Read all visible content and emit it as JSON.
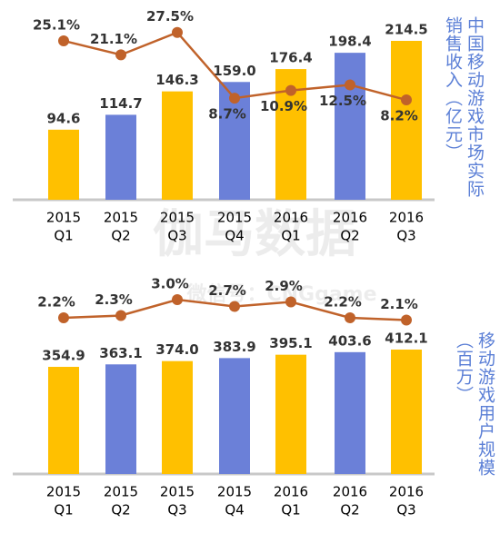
{
  "chart_data": [
    {
      "type": "combo",
      "y_label": "中国移动游戏市场实际销售收入（亿元）",
      "categories": [
        [
          "2015",
          "Q1"
        ],
        [
          "2015",
          "Q2"
        ],
        [
          "2015",
          "Q3"
        ],
        [
          "2015",
          "Q4"
        ],
        [
          "2016",
          "Q1"
        ],
        [
          "2016",
          "Q2"
        ],
        [
          "2016",
          "Q3"
        ]
      ],
      "series": [
        {
          "type": "bar",
          "colors": [
            "#FFC000",
            "#6B80D8",
            "#FFC000",
            "#6B80D8",
            "#FFC000",
            "#6B80D8",
            "#FFC000"
          ],
          "values": [
            94.6,
            114.7,
            146.3,
            159,
            176.4,
            198.4,
            214.5
          ],
          "value_labels": [
            "94.6",
            "114.7",
            "146.3",
            "159.0",
            "176.4",
            "198.4",
            "214.5"
          ]
        },
        {
          "type": "line",
          "color": "#C0622A",
          "values": [
            25.1,
            21.1,
            27.5,
            8.7,
            10.9,
            12.5,
            8.2
          ],
          "value_labels": [
            "25.1%",
            "21.1%",
            "27.5%",
            "8.7%",
            "10.9%",
            "12.5%",
            "8.2%"
          ]
        }
      ]
    },
    {
      "type": "combo",
      "y_label": "移动游戏用户规模（百万）",
      "categories": [
        [
          "2015",
          "Q1"
        ],
        [
          "2015",
          "Q2"
        ],
        [
          "2015",
          "Q3"
        ],
        [
          "2015",
          "Q4"
        ],
        [
          "2016",
          "Q1"
        ],
        [
          "2016",
          "Q2"
        ],
        [
          "2016",
          "Q3"
        ]
      ],
      "series": [
        {
          "type": "bar",
          "colors": [
            "#FFC000",
            "#6B80D8",
            "#FFC000",
            "#6B80D8",
            "#FFC000",
            "#6B80D8",
            "#FFC000"
          ],
          "values": [
            354.9,
            363.1,
            374,
            383.9,
            395.1,
            403.6,
            412.1
          ],
          "value_labels": [
            "354.9",
            "363.1",
            "374.0",
            "383.9",
            "395.1",
            "403.6",
            "412.1"
          ]
        },
        {
          "type": "line",
          "color": "#C0622A",
          "values": [
            2.2,
            2.3,
            3,
            2.7,
            2.9,
            2.2,
            2.1
          ],
          "value_labels": [
            "2.2%",
            "2.3%",
            "3.0%",
            "2.7%",
            "2.9%",
            "2.2%",
            "2.1%"
          ]
        }
      ]
    }
  ],
  "watermark": [
    "伽马数据",
    "微信号：CNGgame"
  ]
}
